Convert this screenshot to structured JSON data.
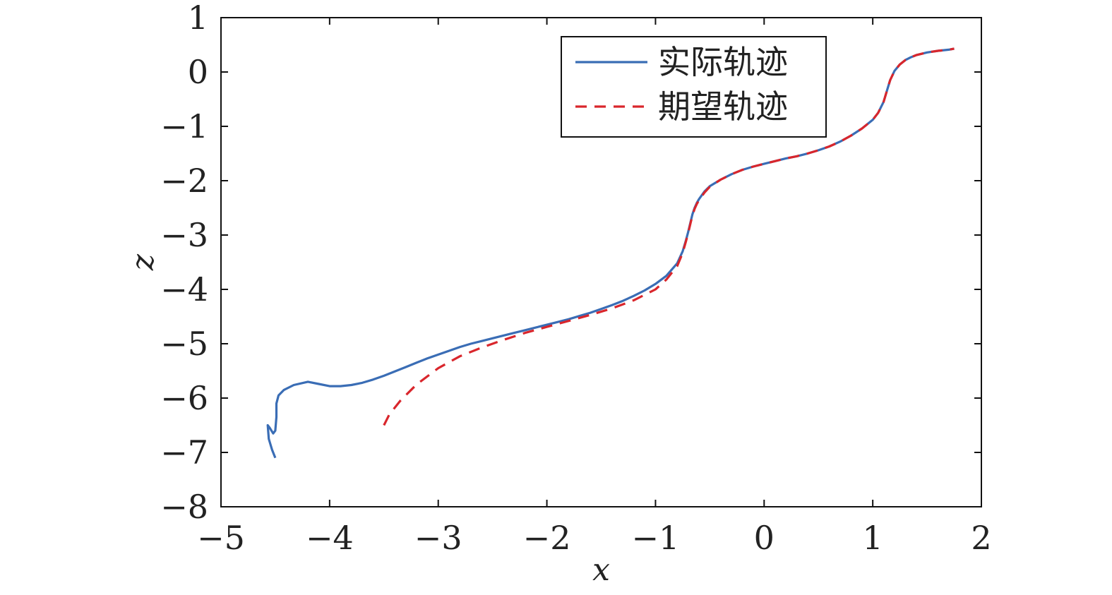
{
  "chart_data": {
    "type": "line",
    "title": "",
    "xlabel": "x",
    "ylabel": "z",
    "xlim": [
      -5,
      2
    ],
    "ylim": [
      -8,
      1
    ],
    "xticks": [
      {
        "value": -5,
        "label": "−5"
      },
      {
        "value": -4,
        "label": "−4"
      },
      {
        "value": -3,
        "label": "−3"
      },
      {
        "value": -2,
        "label": "−2"
      },
      {
        "value": -1,
        "label": "−1"
      },
      {
        "value": 0,
        "label": "0"
      },
      {
        "value": 1,
        "label": "1"
      },
      {
        "value": 2,
        "label": "2"
      }
    ],
    "yticks": [
      {
        "value": 1,
        "label": "1"
      },
      {
        "value": 0,
        "label": "0"
      },
      {
        "value": -1,
        "label": "−1"
      },
      {
        "value": -2,
        "label": "−2"
      },
      {
        "value": -3,
        "label": "−3"
      },
      {
        "value": -4,
        "label": "−4"
      },
      {
        "value": -5,
        "label": "−5"
      },
      {
        "value": -6,
        "label": "−6"
      },
      {
        "value": -7,
        "label": "−7"
      },
      {
        "value": -8,
        "label": "−8"
      }
    ],
    "grid": false,
    "legend_position": "top-right",
    "series": [
      {
        "name": "实际轨迹",
        "color": "#3a6db5",
        "style": "solid",
        "x": [
          -4.5,
          -4.53,
          -4.56,
          -4.57,
          -4.55,
          -4.52,
          -4.5,
          -4.49,
          -4.49,
          -4.47,
          -4.42,
          -4.33,
          -4.2,
          -4.1,
          -4.0,
          -3.9,
          -3.8,
          -3.7,
          -3.6,
          -3.5,
          -3.4,
          -3.3,
          -3.2,
          -3.1,
          -3.0,
          -2.9,
          -2.8,
          -2.7,
          -2.6,
          -2.5,
          -2.4,
          -2.3,
          -2.2,
          -2.1,
          -2.0,
          -1.9,
          -1.8,
          -1.7,
          -1.6,
          -1.5,
          -1.4,
          -1.3,
          -1.2,
          -1.1,
          -1.0,
          -0.9,
          -0.8,
          -0.75,
          -0.72,
          -0.7,
          -0.68,
          -0.66,
          -0.64,
          -0.62,
          -0.6,
          -0.55,
          -0.5,
          -0.4,
          -0.3,
          -0.2,
          -0.1,
          0.0,
          0.1,
          0.2,
          0.3,
          0.4,
          0.5,
          0.6,
          0.7,
          0.8,
          0.9,
          1.0,
          1.05,
          1.1,
          1.13,
          1.16,
          1.2,
          1.25,
          1.3,
          1.35,
          1.4,
          1.5,
          1.6,
          1.7,
          1.75
        ],
        "y": [
          -7.1,
          -6.95,
          -6.75,
          -6.5,
          -6.55,
          -6.65,
          -6.6,
          -6.35,
          -6.1,
          -5.95,
          -5.85,
          -5.76,
          -5.7,
          -5.74,
          -5.78,
          -5.78,
          -5.76,
          -5.72,
          -5.66,
          -5.59,
          -5.51,
          -5.43,
          -5.35,
          -5.27,
          -5.2,
          -5.13,
          -5.06,
          -5.0,
          -4.95,
          -4.9,
          -4.85,
          -4.8,
          -4.75,
          -4.7,
          -4.65,
          -4.6,
          -4.55,
          -4.49,
          -4.43,
          -4.36,
          -4.29,
          -4.21,
          -4.12,
          -4.02,
          -3.9,
          -3.75,
          -3.52,
          -3.3,
          -3.1,
          -2.95,
          -2.78,
          -2.62,
          -2.5,
          -2.41,
          -2.34,
          -2.2,
          -2.1,
          -1.98,
          -1.88,
          -1.8,
          -1.74,
          -1.69,
          -1.64,
          -1.59,
          -1.55,
          -1.5,
          -1.44,
          -1.37,
          -1.28,
          -1.17,
          -1.04,
          -0.88,
          -0.75,
          -0.55,
          -0.35,
          -0.15,
          0.02,
          0.14,
          0.22,
          0.27,
          0.31,
          0.36,
          0.39,
          0.41,
          0.43
        ]
      },
      {
        "name": "期望轨迹",
        "color": "#d9262c",
        "style": "dashed",
        "x": [
          -3.5,
          -3.45,
          -3.35,
          -3.2,
          -3.0,
          -2.8,
          -2.6,
          -2.4,
          -2.2,
          -2.0,
          -1.8,
          -1.6,
          -1.4,
          -1.2,
          -1.0,
          -0.9,
          -0.8,
          -0.75,
          -0.72,
          -0.7,
          -0.68,
          -0.66,
          -0.64,
          -0.62,
          -0.6,
          -0.55,
          -0.5,
          -0.4,
          -0.3,
          -0.2,
          -0.1,
          0.0,
          0.1,
          0.2,
          0.3,
          0.4,
          0.5,
          0.6,
          0.7,
          0.8,
          0.9,
          1.0,
          1.05,
          1.1,
          1.13,
          1.16,
          1.2,
          1.25,
          1.3,
          1.35,
          1.4,
          1.5,
          1.6,
          1.7,
          1.75
        ],
        "y": [
          -6.5,
          -6.3,
          -6.05,
          -5.75,
          -5.45,
          -5.23,
          -5.07,
          -4.93,
          -4.8,
          -4.69,
          -4.58,
          -4.47,
          -4.35,
          -4.2,
          -4.0,
          -3.82,
          -3.57,
          -3.33,
          -3.12,
          -2.97,
          -2.8,
          -2.64,
          -2.52,
          -2.43,
          -2.36,
          -2.22,
          -2.11,
          -1.98,
          -1.88,
          -1.8,
          -1.74,
          -1.69,
          -1.64,
          -1.59,
          -1.55,
          -1.5,
          -1.44,
          -1.37,
          -1.28,
          -1.17,
          -1.04,
          -0.88,
          -0.75,
          -0.55,
          -0.35,
          -0.15,
          0.02,
          0.14,
          0.22,
          0.27,
          0.31,
          0.36,
          0.39,
          0.41,
          0.43
        ]
      }
    ]
  }
}
